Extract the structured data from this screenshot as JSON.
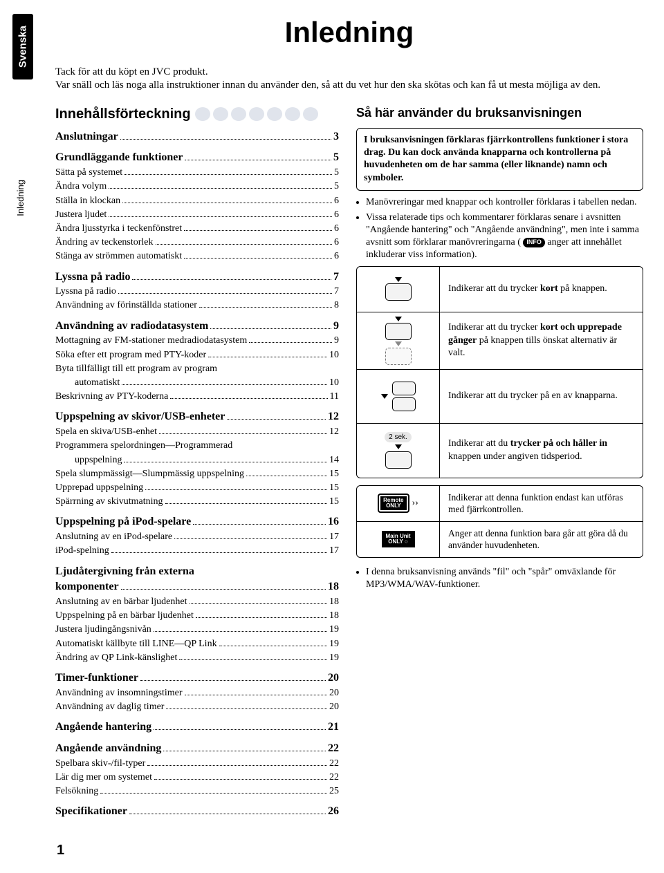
{
  "side_tab": "Svenska",
  "side_label": "Inledning",
  "page_title": "Inledning",
  "intro_1": "Tack för att du köpt en JVC produkt.",
  "intro_2": "Var snäll och läs noga alla instruktioner innan du använder den, så att du vet hur den ska skötas och kan få ut mesta möjliga av den.",
  "toc_heading": "Innehållsförteckning",
  "toc": [
    {
      "level": 1,
      "label": "Anslutningar",
      "page": "3"
    },
    {
      "level": 1,
      "label": "Grundläggande funktioner",
      "page": "5"
    },
    {
      "level": 2,
      "label": "Sätta på systemet",
      "page": "5"
    },
    {
      "level": 2,
      "label": "Ändra volym",
      "page": "5"
    },
    {
      "level": 2,
      "label": "Ställa in klockan",
      "page": "6"
    },
    {
      "level": 2,
      "label": "Justera ljudet",
      "page": "6"
    },
    {
      "level": 2,
      "label": "Ändra ljusstyrka i teckenfönstret",
      "page": "6"
    },
    {
      "level": 2,
      "label": "Ändring av teckenstorlek",
      "page": "6"
    },
    {
      "level": 2,
      "label": "Stänga av strömmen automatiskt",
      "page": "6"
    },
    {
      "level": 1,
      "label": "Lyssna på radio",
      "page": "7"
    },
    {
      "level": 2,
      "label": "Lyssna på radio",
      "page": "7"
    },
    {
      "level": 2,
      "label": "Användning av förinställda stationer",
      "page": "8"
    },
    {
      "level": 1,
      "label": "Användning av radiodatasystem",
      "page": "9"
    },
    {
      "level": 2,
      "label": "Mottagning av FM-stationer medradiodatasystem",
      "page": "9"
    },
    {
      "level": 2,
      "label": "Söka efter ett program med PTY-koder",
      "page": "10"
    },
    {
      "level": 2,
      "label": "Byta tillfälligt till ett program av program",
      "page": ""
    },
    {
      "level": 3,
      "label": "automatiskt",
      "page": "10"
    },
    {
      "level": 2,
      "label": "Beskrivning av PTY-koderna",
      "page": "11"
    },
    {
      "level": 1,
      "label": "Uppspelning av skivor/USB-enheter",
      "page": "12"
    },
    {
      "level": 2,
      "label": "Spela en skiva/USB-enhet",
      "page": "12"
    },
    {
      "level": 2,
      "label": "Programmera spelordningen—Programmerad",
      "page": ""
    },
    {
      "level": 3,
      "label": "uppspelning",
      "page": "14"
    },
    {
      "level": 2,
      "label": "Spela slumpmässigt—Slumpmässig uppspelning",
      "page": "15"
    },
    {
      "level": 2,
      "label": "Upprepad uppspelning",
      "page": "15"
    },
    {
      "level": 2,
      "label": "Spärrning av skivutmatning",
      "page": "15"
    },
    {
      "level": 1,
      "label": "Uppspelning på iPod-spelare",
      "page": "16"
    },
    {
      "level": 2,
      "label": "Anslutning av en iPod-spelare",
      "page": "17"
    },
    {
      "level": 2,
      "label": "iPod-spelning",
      "page": "17"
    },
    {
      "level": 1,
      "label": "Ljudåtergivning från externa",
      "page": ""
    },
    {
      "level": 1,
      "label": "komponenter",
      "page": "18",
      "no_top": true
    },
    {
      "level": 2,
      "label": "Anslutning av en bärbar ljudenhet",
      "page": "18"
    },
    {
      "level": 2,
      "label": "Uppspelning på en bärbar ljudenhet",
      "page": "18"
    },
    {
      "level": 2,
      "label": "Justera ljudingångsnivån",
      "page": "19"
    },
    {
      "level": 2,
      "label": "Automatiskt källbyte till LINE—QP Link",
      "page": "19"
    },
    {
      "level": 2,
      "label": "Ändring av QP Link-känslighet",
      "page": "19"
    },
    {
      "level": 1,
      "label": "Timer-funktioner",
      "page": "20"
    },
    {
      "level": 2,
      "label": "Användning av insomningstimer",
      "page": "20"
    },
    {
      "level": 2,
      "label": "Användning av daglig timer",
      "page": "20"
    },
    {
      "level": 1,
      "label": "Angående hantering",
      "page": "21"
    },
    {
      "level": 1,
      "label": "Angående användning",
      "page": "22"
    },
    {
      "level": 2,
      "label": "Spelbara skiv-/fil-typer",
      "page": "22"
    },
    {
      "level": 2,
      "label": "Lär dig mer om systemet",
      "page": "22"
    },
    {
      "level": 2,
      "label": "Felsökning",
      "page": "25"
    },
    {
      "level": 1,
      "label": "Specifikationer",
      "page": "26"
    }
  ],
  "right_heading": "Så här använder du bruksanvisningen",
  "right_box_1": "I bruksanvisningen förklaras fjärrkontrollens funktioner i stora drag. Du kan dock använda knapparna och kontrollerna på huvudenheten om de har samma (eller liknande) namn och symboler.",
  "bullets": {
    "b1": "Manövreringar med knappar och kontroller förklaras i tabellen nedan.",
    "b2a": "Vissa relaterade tips och kommentarer förklaras senare i avsnitten \"Angående hantering\" och \"Angående användning\", men inte i samma avsnitt som förklarar manövreringarna (",
    "b2b": "anger att innehållet inkluderar viss information)."
  },
  "info_label": "INFO",
  "indicators": [
    {
      "text_a": "Indikerar att du trycker ",
      "bold": "kort",
      "text_b": " på knappen."
    },
    {
      "text_a": "Indikerar att du trycker ",
      "bold": "kort och upprepade gånger",
      "text_b": " på knappen tills önskat alternativ är valt."
    },
    {
      "text_a": "Indikerar att du trycker på en av knapparna.",
      "bold": "",
      "text_b": ""
    },
    {
      "text_a": "Indikerar att du ",
      "bold": "trycker på och håller in",
      "text_b": " knappen under angiven tidsperiod."
    }
  ],
  "hold_label": "2 sek.",
  "only": [
    {
      "badge": "Remote\nONLY",
      "waves": true,
      "text": "Indikerar att denna funktion endast kan utföras med fjärrkontrollen."
    },
    {
      "badge": "Main Unit\nONLY",
      "waves": false,
      "text": "Anger att denna funktion bara går att göra då du använder huvudenheten."
    }
  ],
  "footer_bullet": "I denna bruksanvisning används \"fil\" och \"spår\" omväxlande för MP3/WMA/WAV-funktioner.",
  "page_number": "1"
}
